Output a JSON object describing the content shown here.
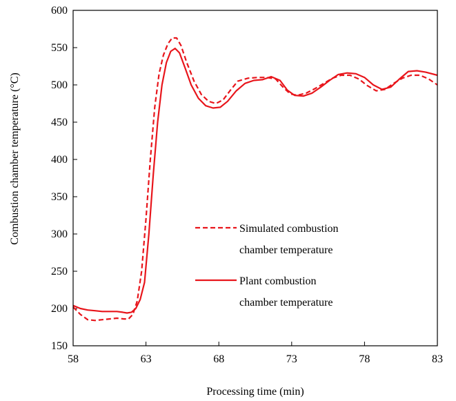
{
  "chart_data": {
    "type": "line",
    "xlabel": "Processing time (min)",
    "ylabel": "Combustion chamber temperature (°C)",
    "xlim": [
      58,
      83
    ],
    "ylim": [
      150,
      600
    ],
    "xticks": [
      58,
      63,
      68,
      73,
      78,
      83
    ],
    "yticks": [
      150,
      200,
      250,
      300,
      350,
      400,
      450,
      500,
      550,
      600
    ],
    "grid": false,
    "legend_position": "center-right",
    "series": [
      {
        "name": "Simulated combustion chamber temperature",
        "legend_lines": [
          "Simulated combustion",
          "chamber temperature"
        ],
        "style": "dashed",
        "color": "#e8151b",
        "points": [
          [
            58,
            202
          ],
          [
            58.5,
            192
          ],
          [
            59,
            185
          ],
          [
            59.5,
            184
          ],
          [
            60,
            185
          ],
          [
            60.5,
            186
          ],
          [
            61,
            187
          ],
          [
            61.5,
            186
          ],
          [
            61.8,
            186
          ],
          [
            62.1,
            192
          ],
          [
            62.4,
            210
          ],
          [
            62.7,
            250
          ],
          [
            63,
            320
          ],
          [
            63.3,
            400
          ],
          [
            63.6,
            470
          ],
          [
            63.9,
            515
          ],
          [
            64.2,
            540
          ],
          [
            64.5,
            555
          ],
          [
            64.8,
            563
          ],
          [
            65.1,
            563
          ],
          [
            65.4,
            553
          ],
          [
            65.8,
            530
          ],
          [
            66.3,
            505
          ],
          [
            66.8,
            487
          ],
          [
            67.3,
            478
          ],
          [
            67.8,
            475
          ],
          [
            68.3,
            480
          ],
          [
            68.8,
            493
          ],
          [
            69.3,
            505
          ],
          [
            70,
            509
          ],
          [
            70.7,
            510
          ],
          [
            71.3,
            510
          ],
          [
            71.9,
            508
          ],
          [
            72.4,
            497
          ],
          [
            72.9,
            488
          ],
          [
            73.4,
            486
          ],
          [
            74,
            489
          ],
          [
            74.6,
            495
          ],
          [
            75.2,
            502
          ],
          [
            75.8,
            509
          ],
          [
            76.4,
            513
          ],
          [
            77,
            513
          ],
          [
            77.6,
            508
          ],
          [
            78.2,
            499
          ],
          [
            78.8,
            492
          ],
          [
            79.4,
            494
          ],
          [
            80,
            502
          ],
          [
            80.6,
            509
          ],
          [
            81.2,
            513
          ],
          [
            81.8,
            513
          ],
          [
            82.4,
            508
          ],
          [
            83,
            500
          ]
        ]
      },
      {
        "name": "Plant combustion chamber temperature",
        "legend_lines": [
          "Plant combustion",
          "chamber temperature"
        ],
        "style": "solid",
        "color": "#e8151b",
        "points": [
          [
            58,
            204
          ],
          [
            58.5,
            200
          ],
          [
            59,
            198
          ],
          [
            59.5,
            197
          ],
          [
            60,
            196
          ],
          [
            60.5,
            196
          ],
          [
            61,
            196
          ],
          [
            61.4,
            195
          ],
          [
            61.7,
            194
          ],
          [
            62,
            195
          ],
          [
            62.3,
            200
          ],
          [
            62.6,
            212
          ],
          [
            62.9,
            235
          ],
          [
            63.2,
            300
          ],
          [
            63.5,
            380
          ],
          [
            63.8,
            450
          ],
          [
            64.1,
            500
          ],
          [
            64.4,
            530
          ],
          [
            64.7,
            545
          ],
          [
            65,
            549
          ],
          [
            65.3,
            543
          ],
          [
            65.7,
            522
          ],
          [
            66.1,
            500
          ],
          [
            66.6,
            482
          ],
          [
            67.1,
            472
          ],
          [
            67.6,
            469
          ],
          [
            68.1,
            470
          ],
          [
            68.6,
            478
          ],
          [
            69.2,
            492
          ],
          [
            69.8,
            502
          ],
          [
            70.4,
            506
          ],
          [
            71,
            507
          ],
          [
            71.6,
            511
          ],
          [
            72.2,
            506
          ],
          [
            72.7,
            493
          ],
          [
            73.2,
            486
          ],
          [
            73.8,
            485
          ],
          [
            74.4,
            489
          ],
          [
            75,
            497
          ],
          [
            75.6,
            506
          ],
          [
            76.2,
            514
          ],
          [
            76.8,
            516
          ],
          [
            77.4,
            515
          ],
          [
            78,
            510
          ],
          [
            78.6,
            500
          ],
          [
            79.2,
            494
          ],
          [
            79.8,
            497
          ],
          [
            80.4,
            508
          ],
          [
            81,
            518
          ],
          [
            81.6,
            519
          ],
          [
            82.2,
            517
          ],
          [
            83,
            513
          ]
        ]
      }
    ]
  }
}
